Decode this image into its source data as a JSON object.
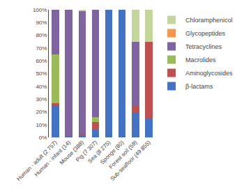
{
  "chart_data": {
    "type": "bar",
    "stacked": true,
    "categories": [
      "Human - adult (2 757)",
      "Human - infant (14)",
      "Mouse (388)",
      "Pig (7 307)",
      "Sea (8 275)",
      "Sponge (80)",
      "Forest soil (59)",
      "Sub-seafloor (49 855)"
    ],
    "series": [
      {
        "name": "β-lactams",
        "color": "#4472C4",
        "values": [
          25,
          1,
          2,
          6,
          100,
          100,
          19,
          15
        ]
      },
      {
        "name": "Aminoglycosides",
        "color": "#C0504D",
        "values": [
          2,
          0,
          1,
          6,
          0,
          0,
          6,
          60
        ]
      },
      {
        "name": "Macrolides",
        "color": "#9BBB59",
        "values": [
          38,
          0,
          0,
          4,
          0,
          0,
          0,
          0
        ]
      },
      {
        "name": "Tetracyclines",
        "color": "#8064A2",
        "values": [
          35,
          99,
          96,
          84,
          0,
          0,
          50,
          0
        ]
      },
      {
        "name": "Glycopeptides",
        "color": "#F79646",
        "values": [
          0,
          0,
          0,
          0,
          0,
          0,
          0,
          0
        ]
      },
      {
        "name": "Chloramphenicol",
        "color": "#C4D79B",
        "values": [
          0,
          0,
          1,
          0,
          0,
          0,
          25,
          25
        ]
      }
    ],
    "ylim": [
      0,
      100
    ],
    "yticks": [
      {
        "value": 0,
        "label": "0%"
      },
      {
        "value": 10,
        "label": "10%"
      },
      {
        "value": 20,
        "label": "20%"
      },
      {
        "value": 30,
        "label": "30%"
      },
      {
        "value": 40,
        "label": "40%"
      },
      {
        "value": 50,
        "label": "50%"
      },
      {
        "value": 60,
        "label": "60%"
      },
      {
        "value": 70,
        "label": "70%"
      },
      {
        "value": 80,
        "label": "80%"
      },
      {
        "value": 90,
        "label": "90%"
      },
      {
        "value": 100,
        "label": "100%"
      }
    ],
    "grid": false,
    "legend": "right"
  }
}
